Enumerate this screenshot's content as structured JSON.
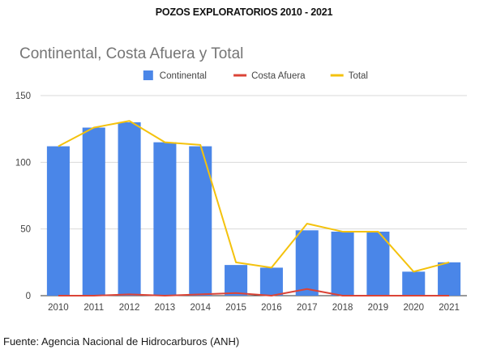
{
  "page": {
    "title": "POZOS EXPLORATORIOS 2010 - 2021",
    "source": "Fuente: Agencia Nacional de Hidrocarburos (ANH)"
  },
  "chart_data": {
    "type": "bar",
    "title": "Continental, Costa Afuera y Total",
    "xlabel": "",
    "ylabel": "",
    "categories": [
      "2010",
      "2011",
      "2012",
      "2013",
      "2014",
      "2015",
      "2016",
      "2017",
      "2018",
      "2019",
      "2020",
      "2021"
    ],
    "ylim": [
      0,
      150
    ],
    "yticks": [
      0,
      50,
      100,
      150
    ],
    "grid": true,
    "legend_position": "top",
    "series": [
      {
        "name": "Continental",
        "type": "bar",
        "color": "#4a86e8",
        "values": [
          112,
          126,
          130,
          115,
          112,
          23,
          21,
          49,
          48,
          48,
          18,
          25
        ]
      },
      {
        "name": "Costa Afuera",
        "type": "line",
        "color": "#db4437",
        "values": [
          0,
          0,
          1,
          0,
          1,
          2,
          0,
          5,
          0,
          0,
          0,
          0
        ]
      },
      {
        "name": "Total",
        "type": "line",
        "color": "#f4c20d",
        "values": [
          112,
          126,
          131,
          115,
          113,
          25,
          21,
          54,
          48,
          48,
          18,
          25
        ]
      }
    ]
  }
}
